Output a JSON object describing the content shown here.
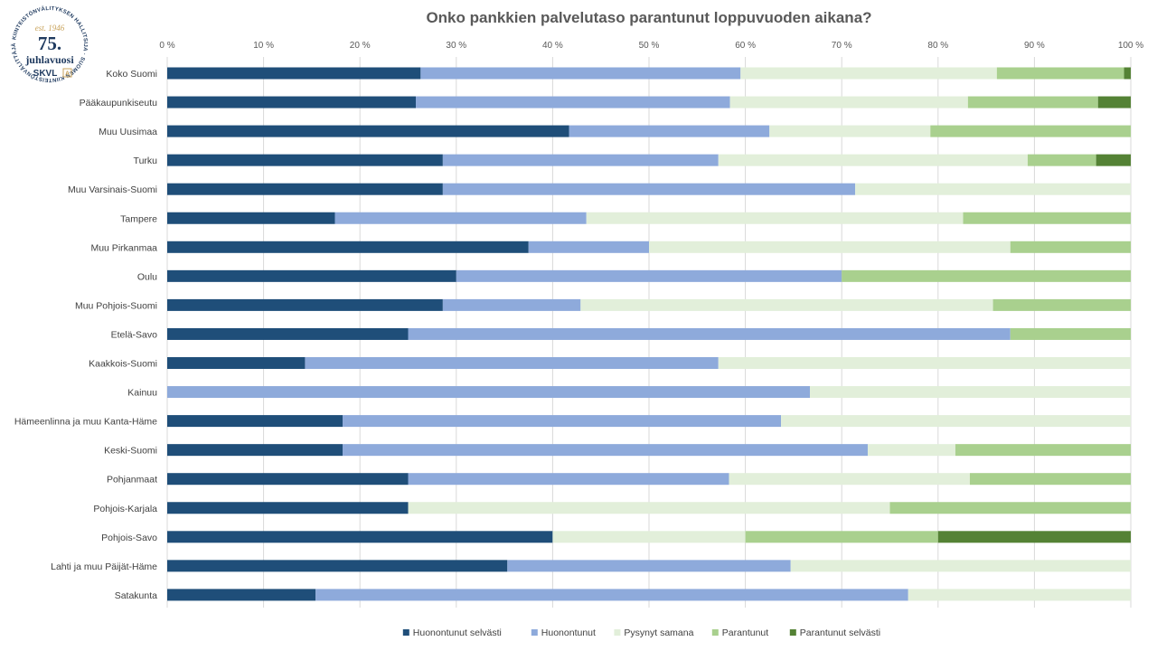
{
  "logo": {
    "ring_text": "KIINTEISTÖNVÄLITYKSEN HALLITSIJA · SUOMEN KIINTEISTÖNVÄLITTÄJÄT RY ·",
    "est": "est. 1946",
    "number": "75.",
    "word": "juhlavuosi",
    "brand": "SKVL",
    "brand_mark": "A",
    "colors": {
      "navy": "#1f3a5f",
      "gold": "#c8a25a"
    }
  },
  "chart_data": {
    "type": "bar",
    "orientation": "horizontal",
    "stacked": "percent",
    "title": "Onko pankkien palvelutaso parantunut loppuvuoden aikana?",
    "xlabel": "",
    "ylabel": "",
    "xlim": [
      0,
      100
    ],
    "xticks": [
      "0 %",
      "10 %",
      "20 %",
      "30 %",
      "40 %",
      "50 %",
      "60 %",
      "70 %",
      "80 %",
      "90 %",
      "100 %"
    ],
    "grid": true,
    "legend_position": "bottom",
    "categories": [
      "Koko Suomi",
      "Pääkaupunkiseutu",
      "Muu Uusimaa",
      "Turku",
      "Muu Varsinais-Suomi",
      "Tampere",
      "Muu Pirkanmaa",
      "Oulu",
      "Muu Pohjois-Suomi",
      "Etelä-Savo",
      "Kaakkois-Suomi",
      "Kainuu",
      "Hämeenlinna ja muu Kanta-Häme",
      "Keski-Suomi",
      "Pohjanmaat",
      "Pohjois-Karjala",
      "Pohjois-Savo",
      "Lahti ja muu Päijät-Häme",
      "Satakunta"
    ],
    "series": [
      {
        "name": "Huonontunut selvästi",
        "color": "#1f4e79",
        "values": [
          26.3,
          25.8,
          41.7,
          28.6,
          28.6,
          17.4,
          37.5,
          30.0,
          28.6,
          25.0,
          14.3,
          0.0,
          18.2,
          18.2,
          25.0,
          25.0,
          40.0,
          35.3,
          15.4
        ]
      },
      {
        "name": "Huonontunut",
        "color": "#8eaadb",
        "values": [
          33.2,
          32.6,
          20.8,
          28.6,
          42.8,
          26.1,
          12.5,
          40.0,
          14.3,
          62.5,
          42.9,
          66.7,
          45.5,
          54.5,
          33.3,
          0.0,
          0.0,
          29.4,
          61.5
        ]
      },
      {
        "name": "Pysynyt samana",
        "color": "#e2efda",
        "values": [
          26.6,
          24.7,
          16.7,
          32.1,
          28.6,
          39.1,
          37.5,
          0.0,
          42.8,
          0.0,
          42.8,
          33.3,
          36.3,
          9.1,
          25.0,
          50.0,
          20.0,
          35.3,
          23.1
        ]
      },
      {
        "name": "Parantunut",
        "color": "#a9d08e",
        "values": [
          13.2,
          13.5,
          20.8,
          7.1,
          0.0,
          17.4,
          12.5,
          30.0,
          14.3,
          12.5,
          0.0,
          0.0,
          0.0,
          18.2,
          16.7,
          25.0,
          20.0,
          0.0,
          0.0
        ]
      },
      {
        "name": "Parantunut selvästi",
        "color": "#548235",
        "values": [
          0.7,
          3.4,
          0.0,
          3.6,
          0.0,
          0.0,
          0.0,
          0.0,
          0.0,
          0.0,
          0.0,
          0.0,
          0.0,
          0.0,
          0.0,
          0.0,
          20.0,
          0.0,
          0.0
        ]
      }
    ]
  }
}
